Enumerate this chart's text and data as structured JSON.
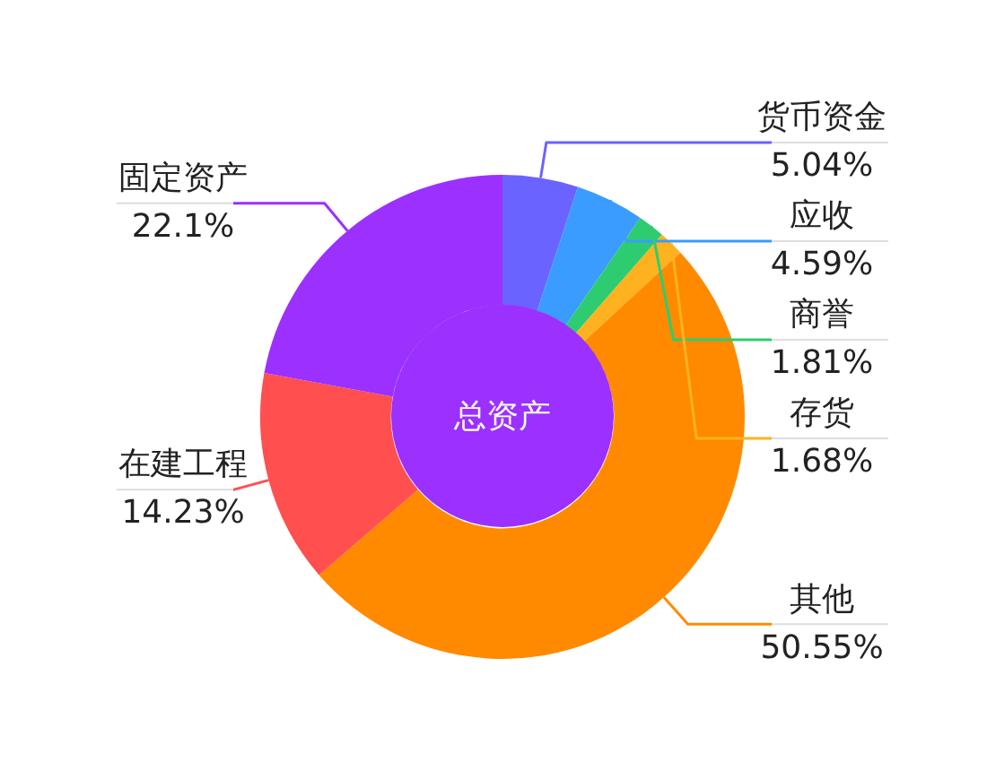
{
  "chart_data": {
    "type": "donut",
    "title": "总资产",
    "categories": [
      "货币资金",
      "应收",
      "商誉",
      "存货",
      "其他",
      "在建工程",
      "固定资产"
    ],
    "values": [
      5.04,
      4.59,
      1.81,
      1.68,
      50.55,
      14.23,
      22.1
    ],
    "value_labels": [
      "5.04%",
      "4.59%",
      "1.81%",
      "1.68%",
      "50.55%",
      "14.23%",
      "22.1%"
    ],
    "colors": [
      "#6b63ff",
      "#3a9cff",
      "#2ecc71",
      "#ffb21f",
      "#ff8a00",
      "#ff4f4f",
      "#9b30ff"
    ],
    "legend": false
  }
}
